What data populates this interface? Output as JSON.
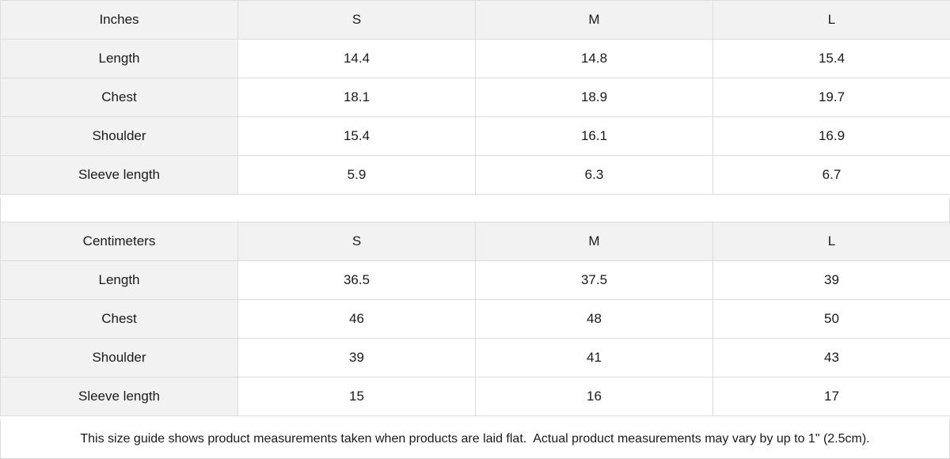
{
  "inches": {
    "header": [
      "Inches",
      "S",
      "M",
      "L"
    ],
    "rows": [
      [
        "Length",
        "14.4",
        "14.8",
        "15.4"
      ],
      [
        "Chest",
        "18.1",
        "18.9",
        "19.7"
      ],
      [
        "Shoulder",
        "15.4",
        "16.1",
        "16.9"
      ],
      [
        "Sleeve length",
        "5.9",
        "6.3",
        "6.7"
      ]
    ]
  },
  "centimeters": {
    "header": [
      "Centimeters",
      "S",
      "M",
      "L"
    ],
    "rows": [
      [
        "Length",
        "36.5",
        "37.5",
        "39"
      ],
      [
        "Chest",
        "46",
        "48",
        "50"
      ],
      [
        "Shoulder",
        "39",
        "41",
        "43"
      ],
      [
        "Sleeve length",
        "15",
        "16",
        "17"
      ]
    ]
  },
  "footnote": "This size guide shows product measurements taken when products are laid flat.  Actual product measurements may vary by up to 1\" (2.5cm).",
  "colors": {
    "header_bg": "#f2f2f2",
    "border": "#dcdcdc"
  }
}
